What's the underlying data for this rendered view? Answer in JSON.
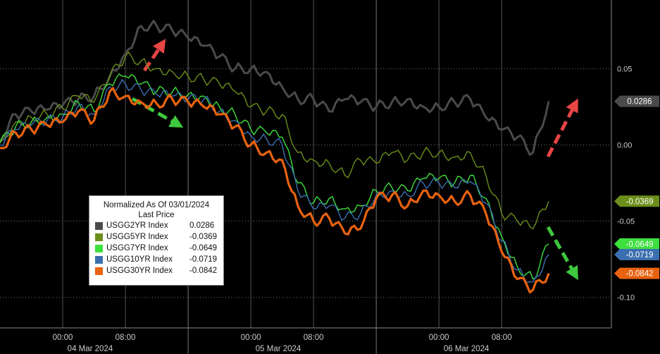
{
  "chart_data": {
    "type": "line",
    "ylim": [
      -0.12,
      0.095
    ],
    "yticks": [
      {
        "value": 0.05,
        "label": "0.05"
      },
      {
        "value": 0.0,
        "label": "0.00"
      },
      {
        "value": -0.05,
        "label": "-0.05"
      },
      {
        "value": -0.1,
        "label": "-0.10"
      }
    ],
    "x_tick_labels": [
      "00:00",
      "08:00",
      "00:00",
      "08:00",
      "00:00",
      "08:00"
    ],
    "x_tick_hours": [
      8,
      16,
      32,
      40,
      56,
      64
    ],
    "date_labels": [
      {
        "label": "04 Mar 2024",
        "hour": 11.5
      },
      {
        "label": "05 Mar 2024",
        "hour": 35.5
      },
      {
        "label": "06 Mar 2024",
        "hour": 59.5
      }
    ],
    "day_separator_hours": [
      24,
      48
    ],
    "x_range_hours": [
      0,
      78
    ],
    "legend": {
      "title": "Normalized As Of 03/01/2024",
      "subtitle": "Last Price",
      "position": "lower-left"
    },
    "series": [
      {
        "name": "USGG2YR Index",
        "last": "0.0286",
        "color": "#4a4a4a",
        "x": [
          0,
          2,
          4,
          6,
          8,
          10,
          12,
          14,
          16,
          18,
          20,
          22,
          24,
          26,
          28,
          30,
          32,
          34,
          36,
          38,
          40,
          42,
          44,
          46,
          48,
          50,
          52,
          54,
          56,
          58,
          60,
          62,
          64,
          66,
          68,
          70
        ],
        "y": [
          0.003,
          0.02,
          0.022,
          0.023,
          0.026,
          0.03,
          0.032,
          0.045,
          0.06,
          0.078,
          0.078,
          0.075,
          0.07,
          0.065,
          0.058,
          0.05,
          0.05,
          0.048,
          0.038,
          0.03,
          0.03,
          0.022,
          0.03,
          0.028,
          0.025,
          0.028,
          0.03,
          0.025,
          0.025,
          0.028,
          0.03,
          0.018,
          0.01,
          0.005,
          -0.005,
          0.0286
        ]
      },
      {
        "name": "USGG5YR Index",
        "last": "-0.0369",
        "color": "#6b8f1a",
        "x": [
          0,
          2,
          4,
          6,
          8,
          10,
          12,
          14,
          16,
          18,
          20,
          22,
          24,
          26,
          28,
          30,
          32,
          34,
          36,
          38,
          40,
          42,
          44,
          46,
          48,
          50,
          52,
          54,
          56,
          58,
          60,
          62,
          64,
          66,
          68,
          70
        ],
        "y": [
          0.002,
          0.015,
          0.018,
          0.02,
          0.024,
          0.032,
          0.028,
          0.045,
          0.058,
          0.055,
          0.05,
          0.048,
          0.045,
          0.043,
          0.04,
          0.035,
          0.025,
          0.022,
          0.02,
          -0.005,
          -0.01,
          -0.012,
          -0.02,
          -0.01,
          -0.012,
          -0.005,
          -0.01,
          -0.005,
          -0.005,
          -0.008,
          -0.005,
          -0.02,
          -0.045,
          -0.05,
          -0.055,
          -0.0369
        ]
      },
      {
        "name": "USGG7YR Index",
        "last": "-0.0649",
        "color": "#3ee03e",
        "x": [
          0,
          2,
          4,
          6,
          8,
          10,
          12,
          14,
          16,
          18,
          20,
          22,
          24,
          26,
          28,
          30,
          32,
          34,
          36,
          38,
          40,
          42,
          44,
          46,
          48,
          50,
          52,
          54,
          56,
          58,
          60,
          62,
          64,
          66,
          68,
          70
        ],
        "y": [
          0.001,
          0.012,
          0.015,
          0.018,
          0.02,
          0.028,
          0.022,
          0.04,
          0.045,
          0.04,
          0.035,
          0.035,
          0.033,
          0.032,
          0.025,
          0.02,
          0.01,
          0.008,
          0.005,
          -0.025,
          -0.038,
          -0.035,
          -0.042,
          -0.04,
          -0.03,
          -0.028,
          -0.03,
          -0.022,
          -0.022,
          -0.025,
          -0.02,
          -0.035,
          -0.06,
          -0.08,
          -0.088,
          -0.0649
        ]
      },
      {
        "name": "USGG10YR Index",
        "last": "-0.0719",
        "color": "#3b6fb0",
        "x": [
          0,
          2,
          4,
          6,
          8,
          10,
          12,
          14,
          16,
          18,
          20,
          22,
          24,
          26,
          28,
          30,
          32,
          34,
          36,
          38,
          40,
          42,
          44,
          46,
          48,
          50,
          52,
          54,
          56,
          58,
          60,
          62,
          64,
          66,
          68,
          70
        ],
        "y": [
          0.0,
          0.01,
          0.013,
          0.016,
          0.018,
          0.026,
          0.02,
          0.038,
          0.04,
          0.036,
          0.033,
          0.032,
          0.03,
          0.03,
          0.022,
          0.016,
          0.006,
          0.004,
          0.0,
          -0.03,
          -0.042,
          -0.04,
          -0.048,
          -0.045,
          -0.033,
          -0.03,
          -0.033,
          -0.025,
          -0.025,
          -0.028,
          -0.024,
          -0.038,
          -0.063,
          -0.082,
          -0.09,
          -0.0719
        ]
      },
      {
        "name": "USGG30YR Index",
        "last": "-0.0842",
        "color": "#e8620f",
        "x": [
          0,
          2,
          4,
          6,
          8,
          10,
          12,
          14,
          16,
          18,
          20,
          22,
          24,
          26,
          28,
          30,
          32,
          34,
          36,
          38,
          40,
          42,
          44,
          46,
          48,
          50,
          52,
          54,
          56,
          58,
          60,
          62,
          64,
          66,
          68,
          70
        ],
        "y": [
          -0.002,
          0.008,
          0.01,
          0.013,
          0.015,
          0.022,
          0.016,
          0.035,
          0.032,
          0.028,
          0.027,
          0.03,
          0.028,
          0.025,
          0.02,
          0.012,
          0.0,
          -0.005,
          -0.01,
          -0.04,
          -0.05,
          -0.048,
          -0.058,
          -0.055,
          -0.035,
          -0.033,
          -0.04,
          -0.03,
          -0.033,
          -0.037,
          -0.033,
          -0.045,
          -0.07,
          -0.088,
          -0.095,
          -0.0842
        ]
      }
    ]
  }
}
